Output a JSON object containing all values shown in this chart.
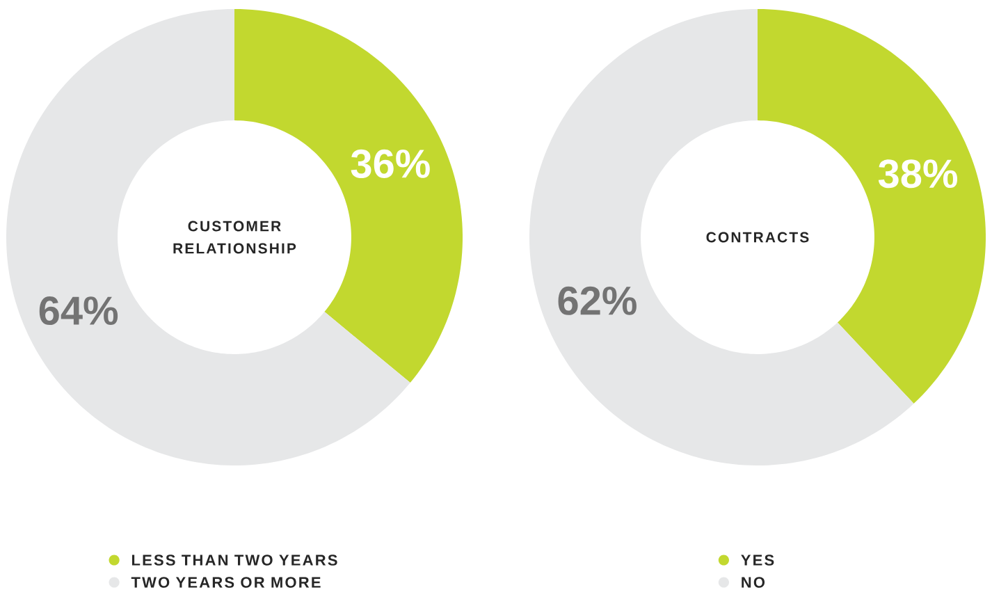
{
  "chart_data": [
    {
      "type": "donut",
      "title": "CUSTOMER RELATIONSHIP",
      "categories": [
        "LESS THAN TWO YEARS",
        "TWO YEARS OR MORE"
      ],
      "values": [
        36,
        64
      ],
      "value_labels": [
        "36%",
        "64%"
      ],
      "colors": [
        "#c2d82f",
        "#e6e7e8"
      ],
      "legend": "bottom"
    },
    {
      "type": "donut",
      "title": "CONTRACTS",
      "categories": [
        "YES",
        "NO"
      ],
      "values": [
        38,
        62
      ],
      "value_labels": [
        "38%",
        "62%"
      ],
      "colors": [
        "#c2d82f",
        "#e6e7e8"
      ],
      "legend": "bottom"
    }
  ]
}
